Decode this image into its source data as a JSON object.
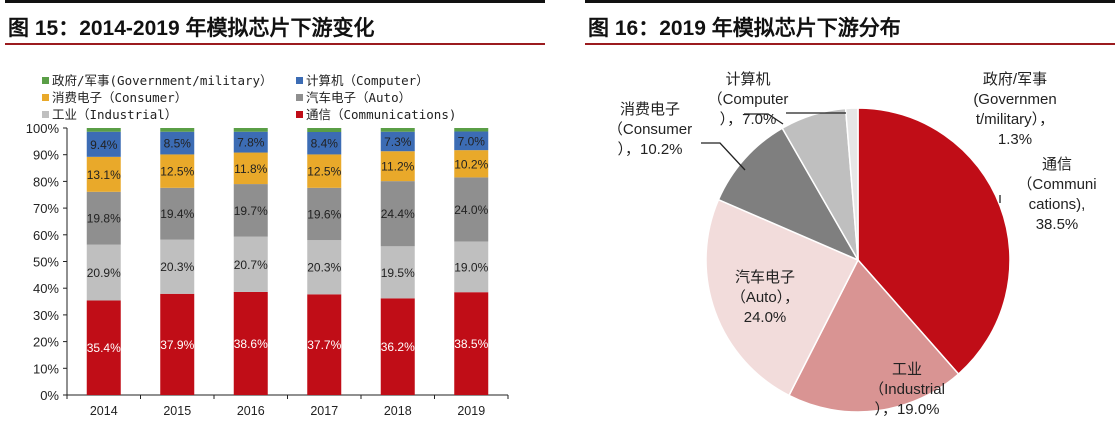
{
  "left": {
    "title": "图 15：2014-2019 年模拟芯片下游变化",
    "chart_data": {
      "type": "bar",
      "stacked": true,
      "categories": [
        "2014",
        "2015",
        "2016",
        "2017",
        "2018",
        "2019"
      ],
      "ylim": [
        0,
        100
      ],
      "yticks": [
        "0%",
        "10%",
        "20%",
        "30%",
        "40%",
        "50%",
        "60%",
        "70%",
        "80%",
        "90%",
        "100%"
      ],
      "legend_position": "top",
      "series": [
        {
          "name": "通信（Communications)",
          "color": "#c00d17",
          "label_color": "#ffffff",
          "values": [
            35.4,
            37.9,
            38.6,
            37.7,
            36.2,
            38.5
          ],
          "labels": [
            "35.4%",
            "37.9%",
            "38.6%",
            "37.7%",
            "36.2%",
            "38.5%"
          ]
        },
        {
          "name": "工业（Industrial）",
          "color": "#bfbfbf",
          "label_color": "#222222",
          "values": [
            20.9,
            20.3,
            20.7,
            20.3,
            19.5,
            19.0
          ],
          "labels": [
            "20.9%",
            "20.3%",
            "20.7%",
            "20.3%",
            "19.5%",
            "19.0%"
          ]
        },
        {
          "name": "汽车电子（Auto）",
          "color": "#8f8f8f",
          "label_color": "#222222",
          "values": [
            19.8,
            19.4,
            19.7,
            19.6,
            24.4,
            24.0
          ],
          "labels": [
            "19.8%",
            "19.4%",
            "19.7%",
            "19.6%",
            "24.4%",
            "24.0%"
          ]
        },
        {
          "name": "消费电子（Consumer）",
          "color": "#e9a92a",
          "label_color": "#222222",
          "values": [
            13.1,
            12.5,
            11.8,
            12.5,
            11.2,
            10.2
          ],
          "labels": [
            "13.1%",
            "12.5%",
            "11.8%",
            "12.5%",
            "11.2%",
            "10.2%"
          ]
        },
        {
          "name": "计算机（Computer）",
          "color": "#3c6cb4",
          "label_color": "#222222",
          "values": [
            9.4,
            8.5,
            7.8,
            8.4,
            7.3,
            7.0
          ],
          "labels": [
            "9.4%",
            "8.5%",
            "7.8%",
            "8.4%",
            "7.3%",
            "7.0%"
          ]
        },
        {
          "name": "政府/军事(Government/military）",
          "color": "#5a9e46",
          "label_color": "#222222",
          "values": [
            1.4,
            1.4,
            1.4,
            1.5,
            1.4,
            1.3
          ],
          "labels": [
            "",
            "",
            "",
            "",
            "",
            ""
          ]
        }
      ]
    }
  },
  "right": {
    "title": "图 16：2019 年模拟芯片下游分布",
    "chart_data": {
      "type": "pie",
      "start": "12 o'clock, clockwise",
      "slices": [
        {
          "name": "通信",
          "label": [
            "通信",
            "（Communi",
            "cations),",
            "38.5%"
          ],
          "value": 38.5,
          "color": "#c00d17"
        },
        {
          "name": "工业",
          "label": [
            "工业",
            "（Industrial",
            "），19.0%"
          ],
          "value": 19.0,
          "color": "#d99493"
        },
        {
          "name": "汽车电子",
          "label": [
            "汽车电子",
            "（Auto），",
            "24.0%"
          ],
          "value": 24.0,
          "color": "#f2dcdb"
        },
        {
          "name": "消费电子",
          "label": [
            "消费电子",
            "（Consumer",
            "），10.2%"
          ],
          "value": 10.2,
          "color": "#7f7f7f"
        },
        {
          "name": "计算机",
          "label": [
            "计算机",
            "（Computer",
            "），7.0%"
          ],
          "value": 7.0,
          "color": "#bfbfbf"
        },
        {
          "name": "政府/军事",
          "label": [
            "政府/军事",
            "(Governmen",
            "t/military），",
            "1.3%"
          ],
          "value": 1.3,
          "color": "#e6e6e6"
        }
      ]
    }
  }
}
